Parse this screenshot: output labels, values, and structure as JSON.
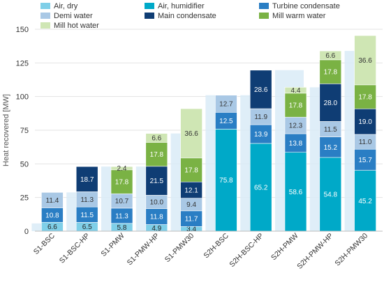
{
  "chart_data": {
    "type": "bar",
    "stacked": true,
    "title": "",
    "xlabel": "",
    "ylabel": "Heat recovered [MW]",
    "ylim": [
      0,
      150
    ],
    "yticks": [
      0,
      25,
      50,
      75,
      100,
      125,
      150
    ],
    "grid": true,
    "legend_position": "top",
    "categories": [
      "S1-BSC",
      "S1-BSC-HP",
      "S1-PMW",
      "S1-PMW-HP",
      "S1-PMW30",
      "S2H-BSC",
      "S2H-BSC-HP",
      "S2H-PMW",
      "S2H-PMW-HP",
      "S2H-PMW30"
    ],
    "series": [
      {
        "name": "Air, dry",
        "color": "#7fcfe8",
        "label_color": "#222222",
        "values": [
          6.6,
          6.5,
          5.8,
          4.9,
          3.4,
          0,
          0,
          0,
          0,
          0
        ]
      },
      {
        "name": "Air, humidifier",
        "color": "#00a9c8",
        "label_color": "#ffffff",
        "values": [
          0,
          0,
          0,
          0,
          0,
          75.8,
          65.2,
          58.6,
          54.8,
          45.2
        ]
      },
      {
        "name": "Turbine condensate",
        "color": "#2a7ec4",
        "label_color": "#ffffff",
        "values": [
          10.8,
          11.5,
          11.3,
          11.8,
          11.7,
          12.5,
          13.9,
          13.8,
          15.2,
          15.7
        ]
      },
      {
        "name": "Demi water",
        "color": "#a9c8e5",
        "label_color": "#333333",
        "values": [
          11.4,
          11.3,
          10.7,
          10.0,
          9.4,
          12.7,
          11.9,
          12.3,
          11.5,
          11.0
        ]
      },
      {
        "name": "Main condensate",
        "color": "#0f3d74",
        "label_color": "#ffffff",
        "values": [
          0,
          18.7,
          0,
          21.5,
          12.1,
          0,
          28.6,
          0,
          28.0,
          19.0
        ]
      },
      {
        "name": "Mill warm water",
        "color": "#7ab244",
        "label_color": "#ffffff",
        "values": [
          0,
          0,
          17.8,
          17.8,
          17.8,
          0,
          0,
          17.8,
          17.8,
          17.8
        ]
      },
      {
        "name": "Mill hot water",
        "color": "#cfe6b4",
        "label_color": "#333333",
        "values": [
          0,
          0,
          2.4,
          6.6,
          36.6,
          0,
          0,
          4.4,
          6.6,
          36.6
        ]
      }
    ],
    "background_bar_color": "#d9ebf7"
  }
}
